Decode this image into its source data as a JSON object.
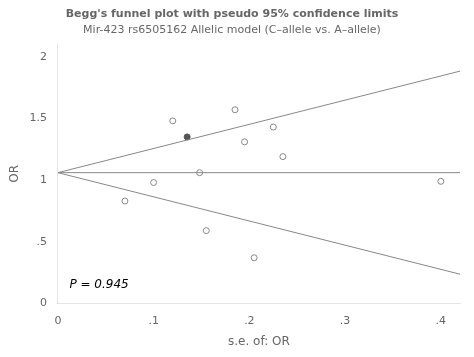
{
  "chart_data": {
    "type": "scatter",
    "title": "Begg's funnel plot with pseudo 95% confidence limits",
    "subtitle": "Mir-423 rs6505162 Allelic model (C–allele vs. A–allele)",
    "x_label": "s.e. of: OR",
    "y_label": "OR",
    "xlim": [
      0,
      0.42
    ],
    "ylim": [
      0,
      2.1
    ],
    "xticks": [
      0,
      {
        "value": 0.1,
        "label": ".1"
      },
      {
        "value": 0.2,
        "label": ".2"
      },
      {
        "value": 0.3,
        "label": ".3"
      },
      {
        "value": 0.4,
        "label": ".4"
      }
    ],
    "yticks": [
      0,
      {
        "value": 0.5,
        "label": ".5"
      },
      1,
      1.5,
      2
    ],
    "grid": false,
    "series": [
      {
        "type": "line",
        "color": "#888888",
        "line_style": "solid",
        "x": [
          0,
          0.42
        ],
        "values": [
          1.06,
          1.8832
        ]
      },
      {
        "type": "line",
        "color": "#888888",
        "line_style": "solid",
        "x": [
          0,
          0.42
        ],
        "values": [
          1.06,
          0.2368
        ]
      },
      {
        "type": "line",
        "color": "#888888",
        "line_style": "solid",
        "x": [
          0,
          0.42
        ],
        "values": [
          1.06,
          1.06
        ]
      },
      {
        "type": "scatter",
        "color": "#888888",
        "marker": "open_circle",
        "x": [
          0.07,
          0.1,
          0.12,
          0.148,
          0.155,
          0.185,
          0.195,
          0.205,
          0.225,
          0.235,
          0.4
        ],
        "values": [
          0.83,
          0.98,
          1.48,
          1.06,
          0.59,
          1.57,
          1.31,
          0.37,
          1.43,
          1.19,
          0.99
        ]
      },
      {
        "type": "scatter",
        "color": "#555555",
        "marker": "circle",
        "x": [
          0.135
        ],
        "values": [
          1.35
        ]
      }
    ],
    "annotations": [
      {
        "text": "P = 0.945",
        "x": 0.012,
        "y": 0.1
      }
    ]
  }
}
